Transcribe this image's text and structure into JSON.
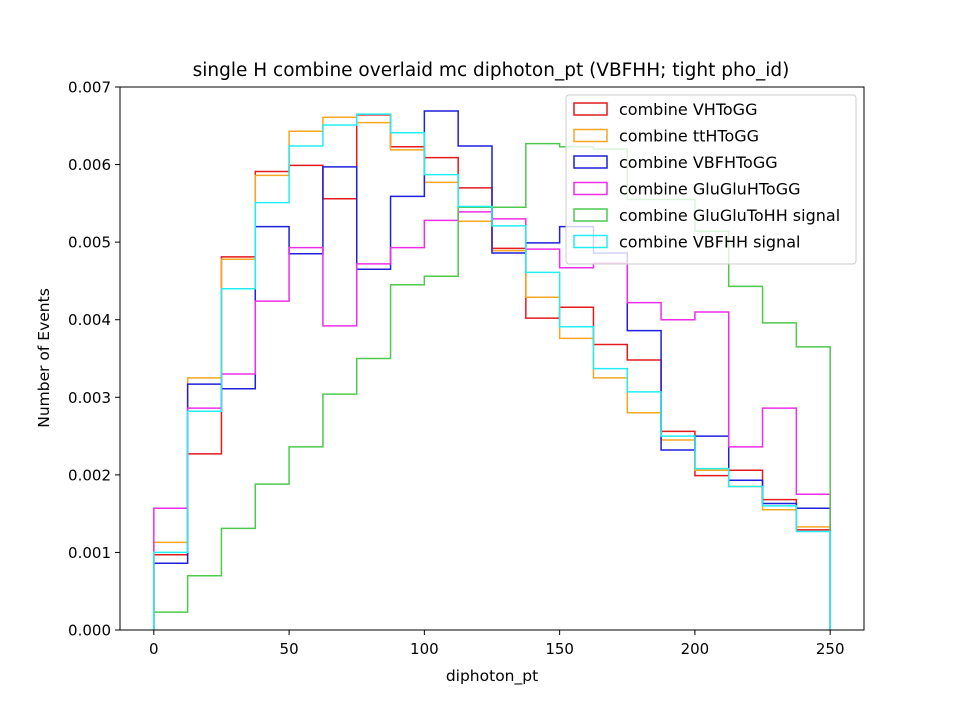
{
  "chart_data": {
    "type": "histogram-step",
    "title": "single H combine overlaid mc diphoton_pt (VBFHH; tight pho_id)",
    "xlabel": "diphoton_pt",
    "ylabel": "Number of Events",
    "xlim": [
      -12.5,
      262.5
    ],
    "ylim": [
      0,
      0.007
    ],
    "xticks": [
      0,
      50,
      100,
      150,
      200,
      250
    ],
    "yticks": [
      0.0,
      0.001,
      0.002,
      0.003,
      0.004,
      0.005,
      0.006,
      0.007
    ],
    "xtick_labels": [
      "0",
      "50",
      "100",
      "150",
      "200",
      "250"
    ],
    "ytick_labels": [
      "0.000",
      "0.001",
      "0.002",
      "0.003",
      "0.004",
      "0.005",
      "0.006",
      "0.007"
    ],
    "legend_position": "top-right",
    "grid": false,
    "bin_edges": [
      0,
      12.5,
      25,
      37.5,
      50,
      62.5,
      75,
      87.5,
      100,
      112.5,
      125,
      137.5,
      150,
      162.5,
      175,
      187.5,
      200,
      212.5,
      225,
      237.5,
      250
    ],
    "series": [
      {
        "name": "combine VHToGG",
        "color": "#e41a1c",
        "values": [
          0.00097,
          0.00227,
          0.00481,
          0.00591,
          0.00599,
          0.00556,
          0.00664,
          0.00623,
          0.00609,
          0.0057,
          0.00492,
          0.00402,
          0.00416,
          0.00368,
          0.00348,
          0.00256,
          0.00199,
          0.00206,
          0.00168,
          0.00129
        ]
      },
      {
        "name": "combine ttHToGG",
        "color": "#f5a623",
        "values": [
          0.00113,
          0.00325,
          0.00478,
          0.00586,
          0.00643,
          0.00661,
          0.00654,
          0.00619,
          0.00577,
          0.00527,
          0.00489,
          0.00429,
          0.00376,
          0.00325,
          0.0028,
          0.00245,
          0.00206,
          0.00185,
          0.00155,
          0.00133
        ]
      },
      {
        "name": "combine VBFHToGG",
        "color": "#1f1fdc",
        "values": [
          0.00086,
          0.00317,
          0.00311,
          0.0052,
          0.00485,
          0.00597,
          0.00465,
          0.00559,
          0.00669,
          0.00624,
          0.00486,
          0.00499,
          0.0052,
          0.00486,
          0.00386,
          0.00232,
          0.0025,
          0.00193,
          0.00163,
          0.00157
        ]
      },
      {
        "name": "combine GluGluHToGG",
        "color": "#ee2ee8",
        "values": [
          0.00157,
          0.00286,
          0.0033,
          0.00424,
          0.00493,
          0.00392,
          0.00472,
          0.00493,
          0.00528,
          0.00539,
          0.0053,
          0.00491,
          0.00467,
          0.00473,
          0.00422,
          0.004,
          0.0041,
          0.00236,
          0.00286,
          0.00175
        ]
      },
      {
        "name": "combine GluGluToHH signal",
        "color": "#4ec94e",
        "values": [
          0.00023,
          0.0007,
          0.00131,
          0.00188,
          0.00236,
          0.00304,
          0.0035,
          0.00445,
          0.00456,
          0.00545,
          0.00545,
          0.00627,
          0.00623,
          0.0062,
          0.00555,
          0.00555,
          0.00514,
          0.00443,
          0.00396,
          0.00365
        ]
      },
      {
        "name": "combine VBFHH signal",
        "color": "#22eef2",
        "values": [
          0.001,
          0.00282,
          0.0044,
          0.00551,
          0.00624,
          0.00651,
          0.00665,
          0.00641,
          0.00587,
          0.00546,
          0.00521,
          0.00461,
          0.00391,
          0.00337,
          0.00307,
          0.0025,
          0.00208,
          0.00185,
          0.0016,
          0.00127
        ]
      }
    ]
  }
}
